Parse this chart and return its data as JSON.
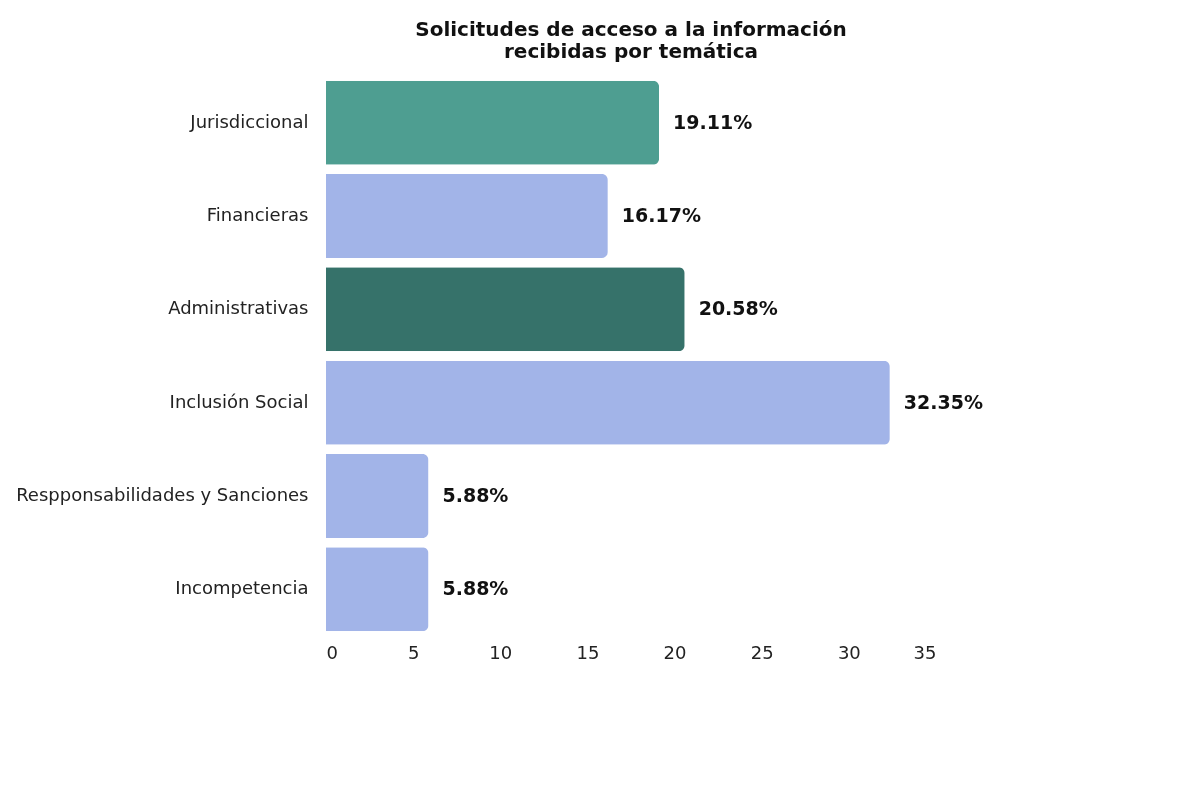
{
  "chart_data": {
    "type": "bar",
    "orientation": "horizontal",
    "title": [
      "Solicitudes de acceso a la información",
      "recibidas por temática"
    ],
    "categories": [
      "Jurisdiccional",
      "Financieras",
      "Administrativas",
      "Inclusión Social",
      "Respponsabilidades y Sanciones",
      "Incompetencia"
    ],
    "values": [
      19.11,
      16.17,
      20.58,
      32.35,
      5.88,
      5.88
    ],
    "value_labels": [
      "19.11%",
      "16.17%",
      "20.58%",
      "32.35%",
      "5.88%",
      "5.88%"
    ],
    "colors": [
      "#4e9e91",
      "#a2b4e8",
      "#36726a",
      "#a2b4e8",
      "#a2b4e8",
      "#a2b4e8"
    ],
    "xlim": [
      0,
      35
    ],
    "xticks": [
      0,
      5,
      10,
      15,
      20,
      25,
      30,
      35
    ],
    "grid": false,
    "legend": false
  }
}
